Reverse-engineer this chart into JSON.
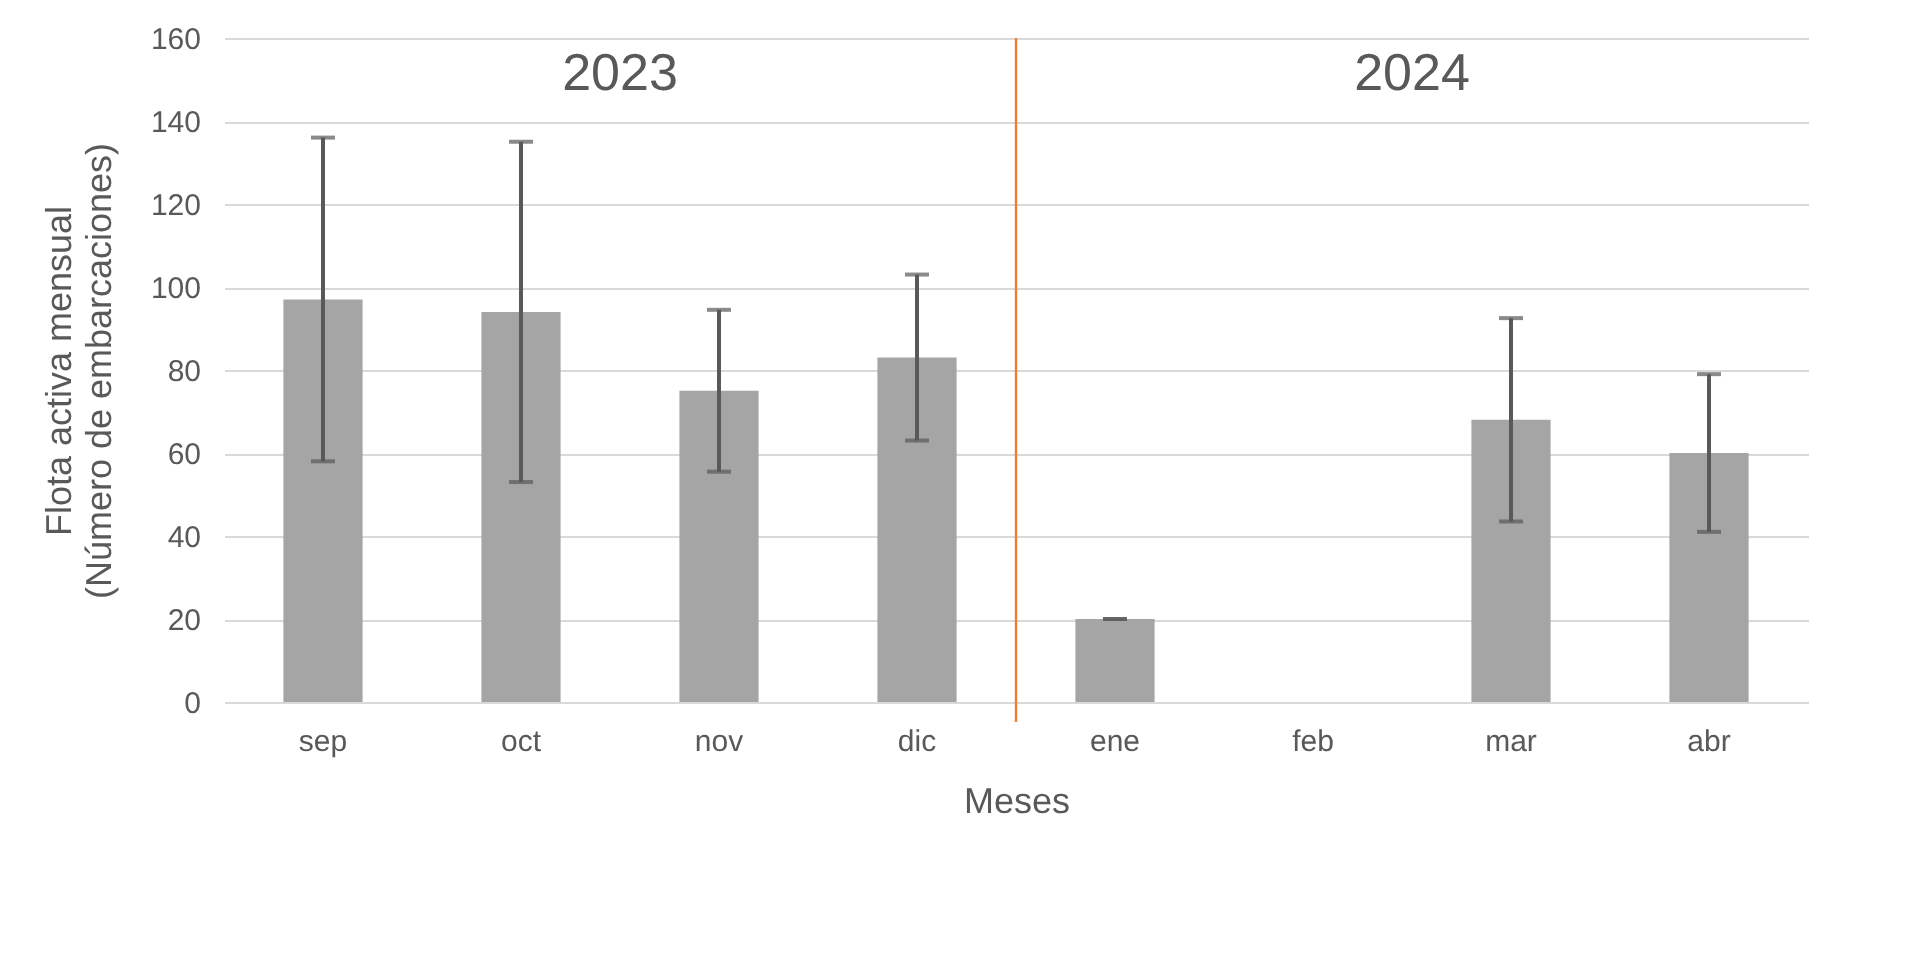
{
  "chart_data": {
    "type": "bar",
    "xlabel": "Meses",
    "ylabel": "Flota activa mensual\n(Número de embarcaciones)",
    "categories": [
      "sep",
      "oct",
      "nov",
      "dic",
      "ene",
      "feb",
      "mar",
      "abr"
    ],
    "values": [
      97,
      94,
      75,
      83,
      20,
      null,
      68,
      60
    ],
    "errors": [
      39,
      41,
      19.5,
      20,
      0,
      null,
      24.5,
      19
    ],
    "color": "#a5a5a5",
    "ylim": [
      0,
      160
    ],
    "yticks": [
      0,
      20,
      40,
      60,
      80,
      100,
      120,
      140,
      160
    ],
    "grid": "y",
    "ref_lines": [
      {
        "axis": "x",
        "value": "ene",
        "color": "#ed7d31"
      }
    ],
    "annotations": [
      "2023",
      "2024"
    ]
  }
}
